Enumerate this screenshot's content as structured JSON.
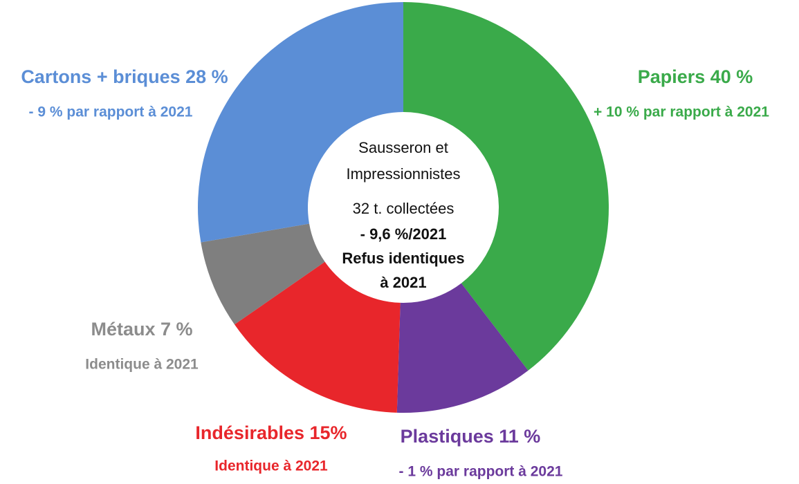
{
  "chart_data": {
    "type": "donut",
    "categories": [
      "Papiers",
      "Plastiques",
      "Indésirables",
      "Métaux",
      "Cartons + briques"
    ],
    "values": [
      40,
      11,
      15,
      7,
      28
    ],
    "value_labels": [
      "40 %",
      "11 %",
      "15%",
      "7 %",
      "28 %"
    ],
    "notes": [
      "+ 10 % par rapport à 2021",
      "- 1 % par rapport à 2021",
      "Identique à 2021",
      "Identique à 2021",
      "- 9 % par rapport à 2021"
    ],
    "colors": [
      "#3aaa4a",
      "#6b3a9c",
      "#e8262b",
      "#7f7f7f",
      "#5b8ed6"
    ],
    "label_colors": [
      "#3aaa4a",
      "#6b3a9c",
      "#e8262b",
      "#8c8c8c",
      "#5b8ed6"
    ],
    "center_text": [
      "Sausseron et",
      "Impressionnistes",
      "32 t. collectées",
      "- 9,6 %/2021",
      "Refus identiques",
      "à 2021"
    ]
  }
}
